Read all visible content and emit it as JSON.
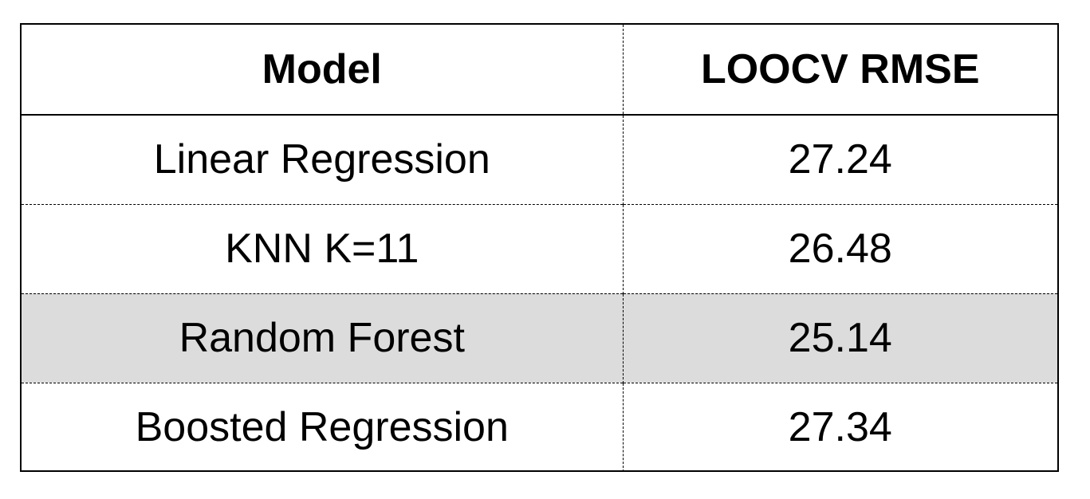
{
  "chart_data": {
    "type": "table",
    "columns": [
      "Model",
      "LOOCV RMSE"
    ],
    "rows": [
      {
        "model": "Linear Regression",
        "loocv_rmse": "27.24",
        "highlighted": false
      },
      {
        "model": "KNN K=11",
        "loocv_rmse": "26.48",
        "highlighted": false
      },
      {
        "model": "Random Forest",
        "loocv_rmse": "25.14",
        "highlighted": true
      },
      {
        "model": "Boosted Regression",
        "loocv_rmse": "27.34",
        "highlighted": false
      }
    ],
    "highlight_color": "#dcdcdd",
    "border_color": "#000000"
  }
}
